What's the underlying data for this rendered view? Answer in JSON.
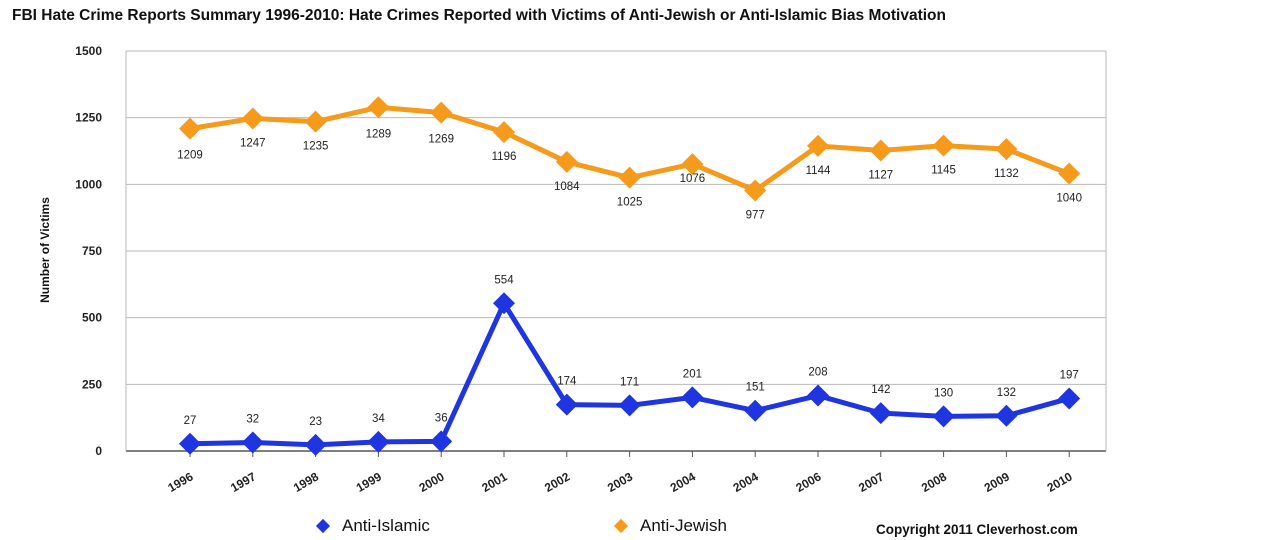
{
  "chart_data": {
    "type": "line",
    "title": "FBI Hate Crime Reports Summary 1996-2010:  Hate Crimes Reported with Victims of Anti-Jewish or Anti-Islamic Bias Motivation",
    "ylabel": "Number of Victims",
    "xlabel": "",
    "ylim": [
      0,
      1500
    ],
    "yticks": [
      "0",
      "250",
      "500",
      "750",
      "1000",
      "1250",
      "1500"
    ],
    "categories": [
      "1996",
      "1997",
      "1998",
      "1999",
      "2000",
      "2001",
      "2002",
      "2003",
      "2004",
      "2004",
      "2006",
      "2007",
      "2008",
      "2009",
      "2010"
    ],
    "series": [
      {
        "name": "Anti-Islamic",
        "color": "#1f35e0",
        "values": [
          27,
          32,
          23,
          34,
          36,
          554,
          174,
          171,
          201,
          151,
          208,
          142,
          130,
          132,
          197
        ]
      },
      {
        "name": "Anti-Jewish",
        "color": "#f59a1b",
        "values": [
          1209,
          1247,
          1235,
          1289,
          1269,
          1196,
          1084,
          1025,
          1076,
          977,
          1144,
          1127,
          1145,
          1132,
          1040
        ]
      }
    ],
    "grid": true,
    "legend": "bottom",
    "copyright": "Copyright 2011 Cleverhost.com"
  }
}
